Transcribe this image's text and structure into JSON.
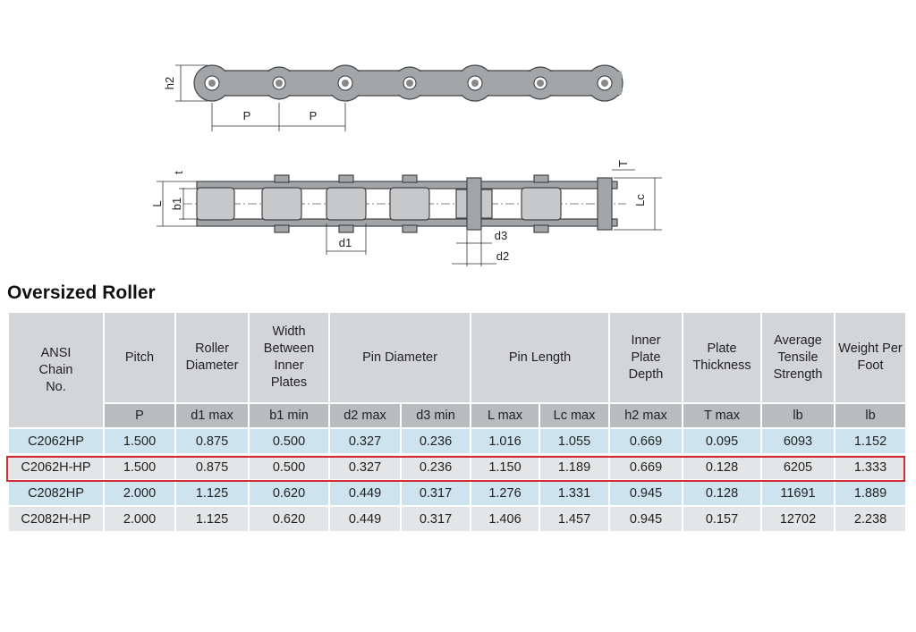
{
  "drawing": {
    "labels": [
      "h2",
      "P",
      "P",
      "t",
      "L",
      "b1",
      "d1",
      "d3",
      "d2",
      "T",
      "Lc"
    ]
  },
  "title": "Oversized Roller",
  "table": {
    "headers": [
      "ANSI Chain No.",
      "Pitch",
      "Roller Diameter",
      "Width Between Inner Plates",
      "Pin Diameter",
      "Pin Length",
      "Inner Plate Depth",
      "Plate Thickness",
      "Average Tensile Strength",
      "Weight Per Foot"
    ],
    "units": [
      "P",
      "d1 max",
      "b1 min",
      "d2 max",
      "d3 min",
      "L max",
      "Lc max",
      "h2 max",
      "T max",
      "lb",
      "lb"
    ],
    "rows": [
      [
        "C2062HP",
        "1.500",
        "0.875",
        "0.500",
        "0.327",
        "0.236",
        "1.016",
        "1.055",
        "0.669",
        "0.095",
        "6093",
        "1.152"
      ],
      [
        "C2062H-HP",
        "1.500",
        "0.875",
        "0.500",
        "0.327",
        "0.236",
        "1.150",
        "1.189",
        "0.669",
        "0.128",
        "6205",
        "1.333"
      ],
      [
        "C2082HP",
        "2.000",
        "1.125",
        "0.620",
        "0.449",
        "0.317",
        "1.276",
        "1.331",
        "0.945",
        "0.128",
        "11691",
        "1.889"
      ],
      [
        "C2082H-HP",
        "2.000",
        "1.125",
        "0.620",
        "0.449",
        "0.317",
        "1.406",
        "1.457",
        "0.945",
        "0.157",
        "12702",
        "2.238"
      ]
    ]
  }
}
